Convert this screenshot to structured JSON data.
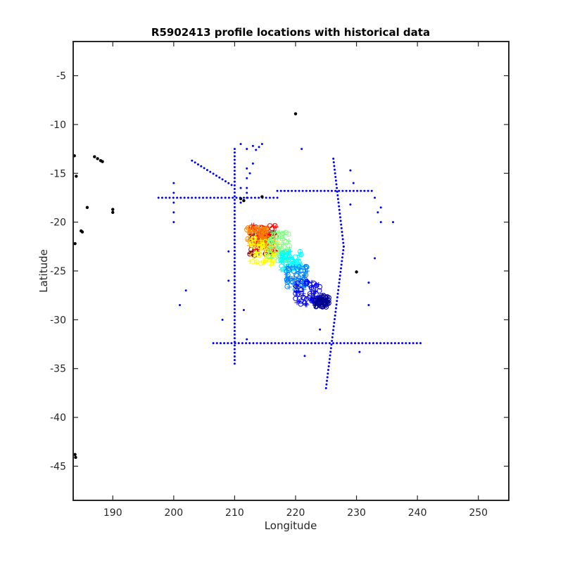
{
  "chart_data": {
    "type": "scatter",
    "title": "R5902413 profile locations with historical data",
    "xlabel": "Longitude",
    "ylabel": "Latitude",
    "xlim": [
      183.5,
      255
    ],
    "ylim": [
      -48.5,
      -1.5
    ],
    "xticks": [
      190,
      200,
      210,
      220,
      230,
      240,
      250
    ],
    "yticks": [
      -5,
      -10,
      -15,
      -20,
      -25,
      -30,
      -35,
      -40,
      -45
    ],
    "grid": false,
    "legend": "none",
    "colors": {
      "historical": "#0000ff",
      "land": "#000000",
      "profile_colormap": [
        "#00008f",
        "#0000ff",
        "#0080ff",
        "#00ffff",
        "#80ff80",
        "#ffff00",
        "#ff8000",
        "#ff0000",
        "#800000"
      ]
    },
    "series": [
      {
        "kind": "historical-track-lines",
        "segments": [
          [
            [
              197.5,
              -17.5
            ],
            [
              217,
              -17.5
            ]
          ],
          [
            [
              217,
              -16.8
            ],
            [
              232.5,
              -16.8
            ]
          ],
          [
            [
              206.5,
              -32.4
            ],
            [
              240.5,
              -32.4
            ]
          ],
          [
            [
              210,
              -12.5
            ],
            [
              210,
              -34.5
            ]
          ],
          [
            [
              203,
              -13.7
            ],
            [
              209.5,
              -16.2
            ]
          ],
          [
            [
              226.2,
              -13.5
            ],
            [
              227.9,
              -22.5
            ]
          ],
          [
            [
              227.9,
              -22.5
            ],
            [
              225,
              -37
            ]
          ]
        ]
      },
      {
        "kind": "historical-scattered-points",
        "points": [
          [
            200,
            -16
          ],
          [
            200,
            -17
          ],
          [
            200,
            -18
          ],
          [
            200,
            -19
          ],
          [
            200,
            -20
          ],
          [
            211,
            -12
          ],
          [
            212,
            -12.5
          ],
          [
            213,
            -12.2
          ],
          [
            213.5,
            -12.6
          ],
          [
            214,
            -12.3
          ],
          [
            214.5,
            -12
          ],
          [
            213,
            -14
          ],
          [
            212,
            -14.5
          ],
          [
            212,
            -15.5
          ],
          [
            212,
            -17.5
          ],
          [
            211,
            -18
          ],
          [
            212.5,
            -15
          ],
          [
            212,
            -16.5
          ],
          [
            211,
            -16.5
          ],
          [
            212,
            -17
          ],
          [
            221,
            -12.5
          ],
          [
            229,
            -14.7
          ],
          [
            229.5,
            -16
          ],
          [
            233,
            -17.5
          ],
          [
            229,
            -18.2
          ],
          [
            234,
            -18.5
          ],
          [
            233.5,
            -19
          ],
          [
            234,
            -20
          ],
          [
            236,
            -20
          ],
          [
            233,
            -23.7
          ],
          [
            232,
            -26.2
          ],
          [
            232,
            -28.5
          ],
          [
            230.5,
            -33.3
          ],
          [
            221.5,
            -33.7
          ],
          [
            212,
            -32
          ],
          [
            211.5,
            -29
          ],
          [
            224,
            -31
          ],
          [
            201,
            -28.5
          ],
          [
            202,
            -27
          ],
          [
            209,
            -23
          ],
          [
            209,
            -26
          ],
          [
            208,
            -30
          ]
        ]
      },
      {
        "kind": "land",
        "points": [
          [
            220,
            -8.9
          ],
          [
            187,
            -13.3
          ],
          [
            187.5,
            -13.5
          ],
          [
            188,
            -13.7
          ],
          [
            188.3,
            -13.8
          ],
          [
            185.8,
            -18.5
          ],
          [
            190,
            -18.7
          ],
          [
            190,
            -19
          ],
          [
            184.8,
            -20.9
          ],
          [
            185,
            -21
          ],
          [
            184,
            -15.3
          ],
          [
            183.7,
            -13.2
          ],
          [
            183.8,
            -22.2
          ],
          [
            183.8,
            -43.8
          ],
          [
            183.9,
            -44.1
          ],
          [
            211,
            -17.6
          ],
          [
            211.5,
            -17.8
          ],
          [
            214.5,
            -17.4
          ],
          [
            230,
            -25.1
          ]
        ]
      },
      {
        "kind": "float-profiles",
        "markers": "circle and plus",
        "clusters": [
          {
            "color": "#800000",
            "lon": [
              212.5,
              216.5
            ],
            "lat": [
              -20.5,
              -23.5
            ]
          },
          {
            "color": "#ff0000",
            "lon": [
              212.8,
              216.8
            ],
            "lat": [
              -20.3,
              -23
            ]
          },
          {
            "color": "#ff8000",
            "lon": [
              212,
              215.5
            ],
            "lat": [
              -20.5,
              -22.5
            ]
          },
          {
            "color": "#ffff00",
            "lon": [
              212.5,
              217
            ],
            "lat": [
              -21.5,
              -24.5
            ]
          },
          {
            "color": "#80ff80",
            "lon": [
              215.5,
              219
            ],
            "lat": [
              -21,
              -24
            ]
          },
          {
            "color": "#00ffff",
            "lon": [
              217.5,
              221
            ],
            "lat": [
              -23,
              -25
            ]
          },
          {
            "color": "#0080ff",
            "lon": [
              218.5,
              222
            ],
            "lat": [
              -24.5,
              -27
            ]
          },
          {
            "color": "#0000ff",
            "lon": [
              220,
              224
            ],
            "lat": [
              -26,
              -28.5
            ]
          },
          {
            "color": "#00008f",
            "lon": [
              223,
              225.5
            ],
            "lat": [
              -27.5,
              -28.7
            ]
          }
        ]
      }
    ]
  }
}
